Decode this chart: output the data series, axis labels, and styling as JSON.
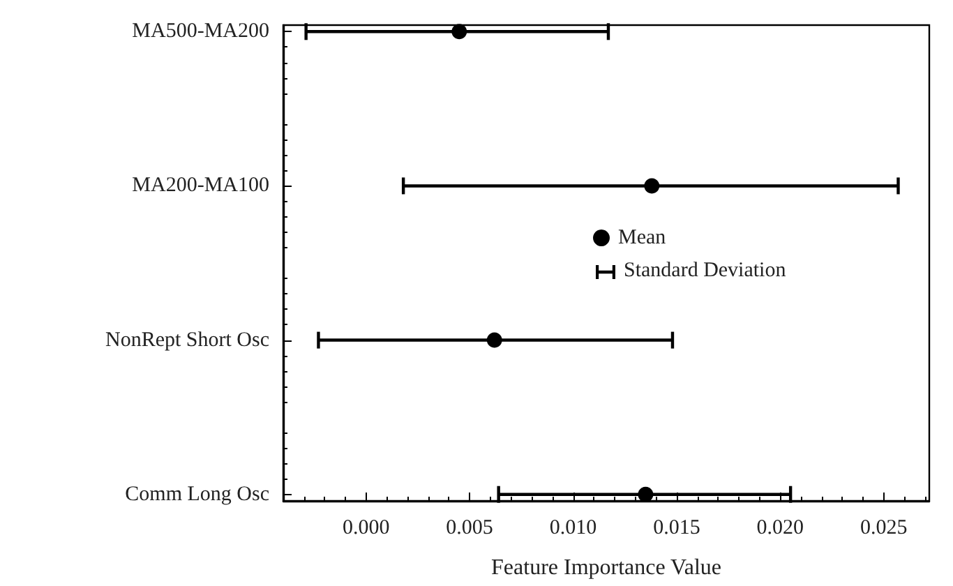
{
  "chart_data": {
    "type": "scatter",
    "orientation": "horizontal",
    "categories": [
      "MA500-MA200",
      "MA200-MA100",
      "NonRept Short Osc",
      "Comm Long Osc"
    ],
    "series": [
      {
        "name": "Mean",
        "color": "#000000",
        "values": [
          0.0045,
          0.0138,
          0.0062,
          0.0135
        ],
        "errors": [
          [
            -0.0029,
            0.0117
          ],
          [
            0.0018,
            0.0257
          ],
          [
            -0.0023,
            0.0148
          ],
          [
            0.0064,
            0.0205
          ]
        ]
      }
    ],
    "xlabel": "Feature Importance Value",
    "xlim": [
      -0.004,
      0.0272
    ],
    "xticks": [
      {
        "value": 0,
        "label": "0.000"
      },
      {
        "value": 0.005,
        "label": "0.005"
      },
      {
        "value": 0.01,
        "label": "0.010"
      },
      {
        "value": 0.015,
        "label": "0.015"
      },
      {
        "value": 0.02,
        "label": "0.020"
      },
      {
        "value": 0.025,
        "label": "0.025"
      }
    ],
    "annotations": [
      "Standard Deviation"
    ],
    "legend": "right",
    "marker": "circle",
    "grid": false
  }
}
